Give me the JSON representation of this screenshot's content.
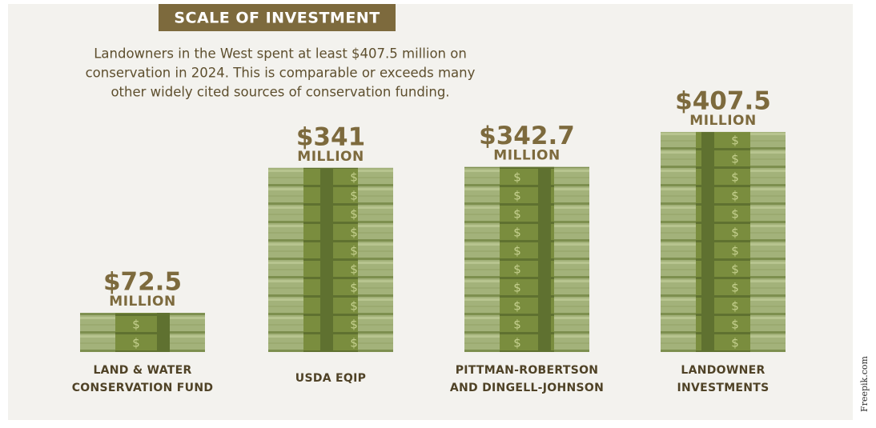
{
  "chart_data": {
    "type": "pictograph",
    "title": "SCALE OF INVESTMENT",
    "subtitle": [
      "Landowners in the West spent at least $407.5 million on",
      "conservation in 2024. This is comparable or exceeds many",
      "other widely cited sources of conservation funding."
    ],
    "categories": [
      [
        "LAND & WATER",
        "CONSERVATION FUND"
      ],
      [
        "USDA EQIP"
      ],
      [
        "PITTMAN-ROBERTSON",
        "AND DINGELL-JOHNSON"
      ],
      [
        "LANDOWNER",
        "INVESTMENTS"
      ]
    ],
    "values": [
      72.5,
      341,
      342.7,
      407.5
    ],
    "value_labels": [
      "$72.5",
      "$341",
      "$342.7",
      "$407.5"
    ],
    "value_unit": "MILLION",
    "color": "#a3b27a",
    "credit": "Freepik.com"
  }
}
